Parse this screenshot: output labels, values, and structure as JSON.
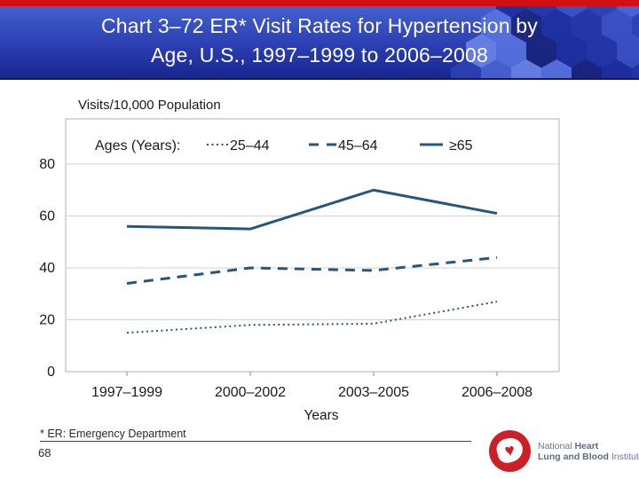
{
  "header": {
    "title_line1": "Chart 3–72 ER* Visit Rates for Hypertension by",
    "title_line2": "Age, U.S., 1997–1999 to 2006–2008",
    "banner_colors": {
      "top_bar": "#d40f0f",
      "gradient_top": "#4560cd",
      "gradient_bottom": "#18258f"
    }
  },
  "chart_data": {
    "type": "line",
    "title": "",
    "ylabel": "Visits/10,000 Population",
    "xlabel": "Years",
    "legend_label": "Ages (Years):",
    "legend_position": "top-inside",
    "grid": true,
    "categories": [
      "1997–1999",
      "2000–2002",
      "2003–2005",
      "2006–2008"
    ],
    "series": [
      {
        "name": "25–44",
        "style": "dotted",
        "values": [
          15,
          18,
          18.5,
          27
        ]
      },
      {
        "name": "45–64",
        "style": "dashed",
        "values": [
          34,
          40,
          39,
          44
        ]
      },
      {
        "name": "≥65",
        "style": "solid",
        "values": [
          56,
          55,
          70,
          61
        ]
      }
    ],
    "y_ticks": [
      0,
      20,
      40,
      60,
      80
    ],
    "y_tick_labels": [
      "0",
      "20",
      "40",
      "60",
      "80"
    ],
    "ylim": [
      0,
      97
    ],
    "line_color": "#27567d"
  },
  "footer": {
    "footnote": "* ER: Emergency Department",
    "page_number": "68",
    "logo": {
      "line1_regular": "National",
      "line1_bold": "Heart",
      "line2_bold": "Lung and Blood",
      "line2_regular": "Institute"
    }
  }
}
